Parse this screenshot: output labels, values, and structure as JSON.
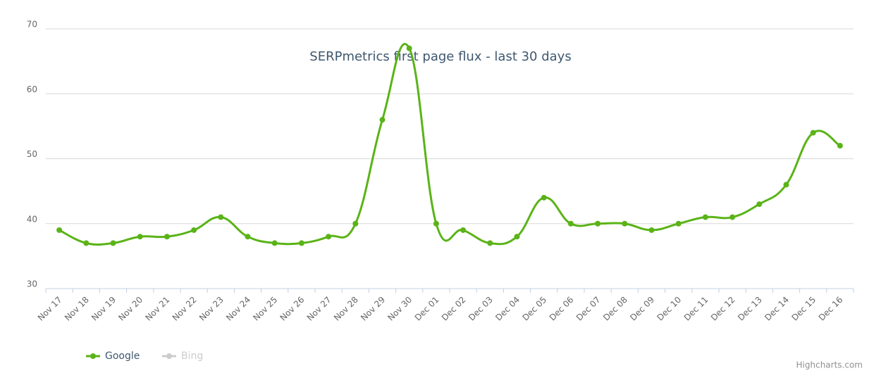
{
  "chart_data": {
    "type": "line",
    "title": "SERPmetrics first page flux - last 30 days",
    "categories": [
      "Nov 17",
      "Nov 18",
      "Nov 19",
      "Nov 20",
      "Nov 21",
      "Nov 22",
      "Nov 23",
      "Nov 24",
      "Nov 25",
      "Nov 26",
      "Nov 27",
      "Nov 28",
      "Nov 29",
      "Nov 30",
      "Dec 01",
      "Dec 02",
      "Dec 03",
      "Dec 04",
      "Dec 05",
      "Dec 06",
      "Dec 07",
      "Dec 08",
      "Dec 09",
      "Dec 10",
      "Dec 11",
      "Dec 12",
      "Dec 13",
      "Dec 14",
      "Dec 15",
      "Dec 16"
    ],
    "series": [
      {
        "name": "Google",
        "color": "#5ab317",
        "values": [
          39,
          37,
          37,
          38,
          38,
          39,
          41,
          38,
          37,
          37,
          38,
          40,
          56,
          67,
          40,
          39,
          37,
          38,
          44,
          40,
          40,
          40,
          39,
          40,
          41,
          41,
          43,
          46,
          54,
          52
        ]
      },
      {
        "name": "Bing",
        "color": "#cccccc",
        "visible": false
      }
    ],
    "ylim": [
      30,
      70
    ],
    "yticks": [
      30,
      40,
      50,
      60,
      70
    ],
    "grid": true,
    "credits": "Highcharts.com"
  }
}
